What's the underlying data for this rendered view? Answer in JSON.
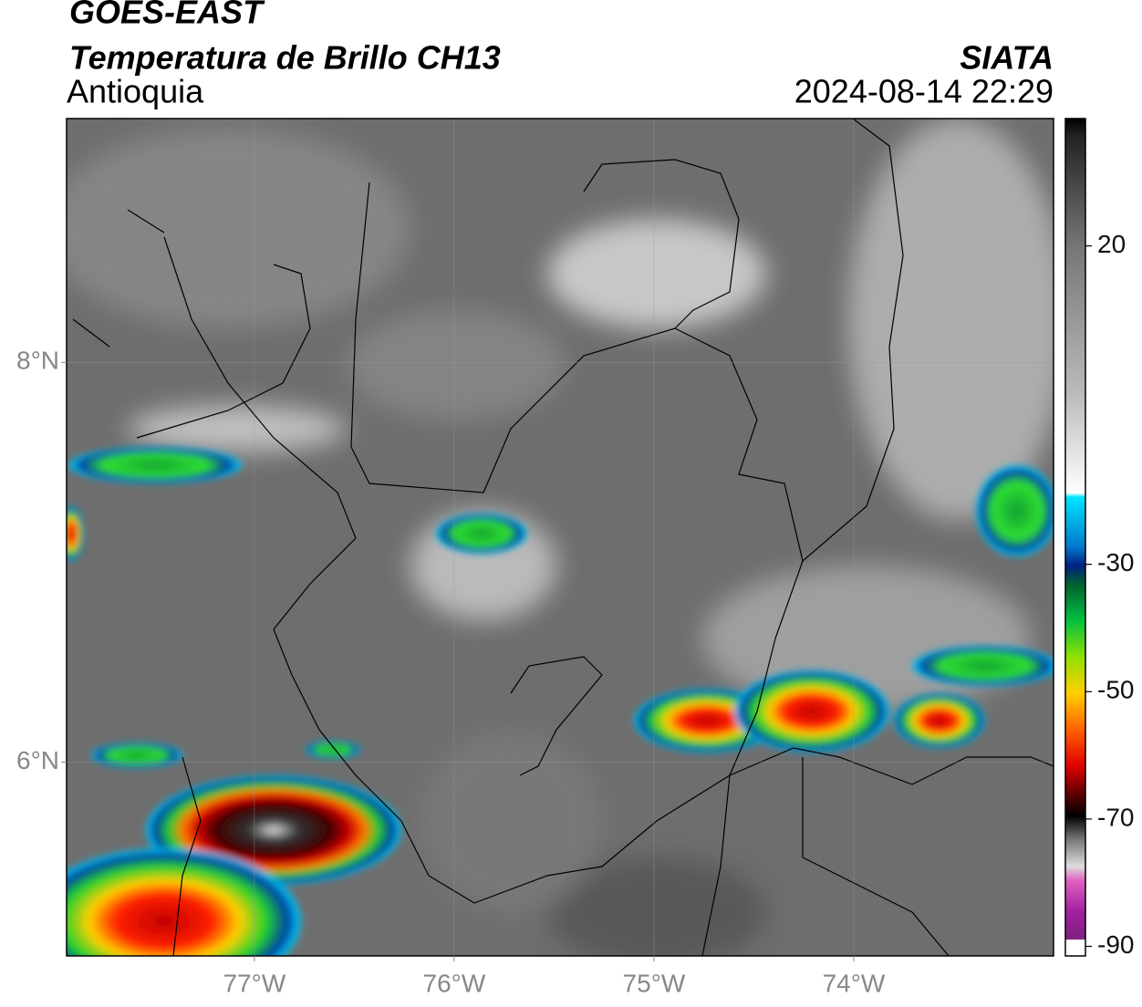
{
  "header": {
    "title": "GOES-EAST",
    "subtitle": "Temperatura de Brillo CH13",
    "region": "Antioquia",
    "source": "SIATA",
    "datetime": "2024-08-14 22:29"
  },
  "map": {
    "xlim": [
      -77.94,
      -73.0
    ],
    "ylim": [
      5.03,
      9.22
    ],
    "xticks": [
      {
        "value": -77,
        "label": "77°W"
      },
      {
        "value": -76,
        "label": "76°W"
      },
      {
        "value": -75,
        "label": "75°W"
      },
      {
        "value": -74,
        "label": "74°W"
      }
    ],
    "yticks": [
      {
        "value": 8,
        "label": "8°N"
      },
      {
        "value": 6,
        "label": "6°N"
      }
    ],
    "grid": true
  },
  "colorbar": {
    "vlim": [
      -91.5,
      40
    ],
    "ticks": [
      20,
      -30,
      -50,
      -70,
      -90
    ]
  }
}
